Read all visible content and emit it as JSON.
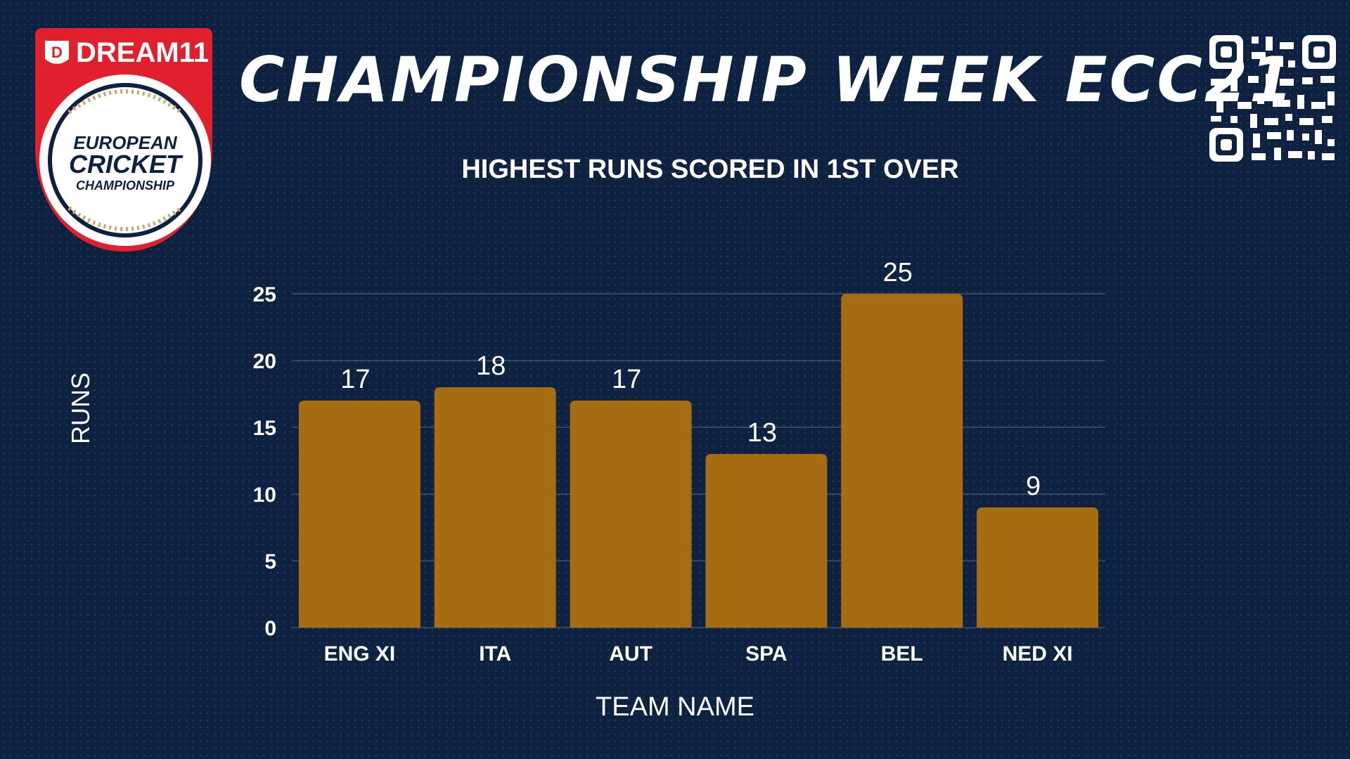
{
  "header": {
    "title": "CHAMPIONSHIP WEEK ECC21",
    "logo": {
      "brand_text": "DREAM11",
      "line1": "EUROPEAN",
      "line2": "CRICKET",
      "line3": "CHAMPIONSHIP",
      "icon": "dream11-logo-icon"
    },
    "qr_icon": "qr-code-icon"
  },
  "colors": {
    "background": "#0d2140",
    "bar": "#a56c12",
    "logo_red": "#e0202c",
    "logo_gold": "#c9a66b"
  },
  "chart_data": {
    "type": "bar",
    "title": "HIGHEST RUNS SCORED IN 1ST OVER",
    "xlabel": "TEAM NAME",
    "ylabel": "RUNS",
    "categories": [
      "ENG XI",
      "ITA",
      "AUT",
      "SPA",
      "BEL",
      "NED XI"
    ],
    "values": [
      17,
      18,
      17,
      13,
      25,
      9
    ],
    "ylim": [
      0,
      25
    ],
    "yticks": [
      0,
      5,
      10,
      15,
      20,
      25
    ],
    "grid": true,
    "data_labels": true
  }
}
